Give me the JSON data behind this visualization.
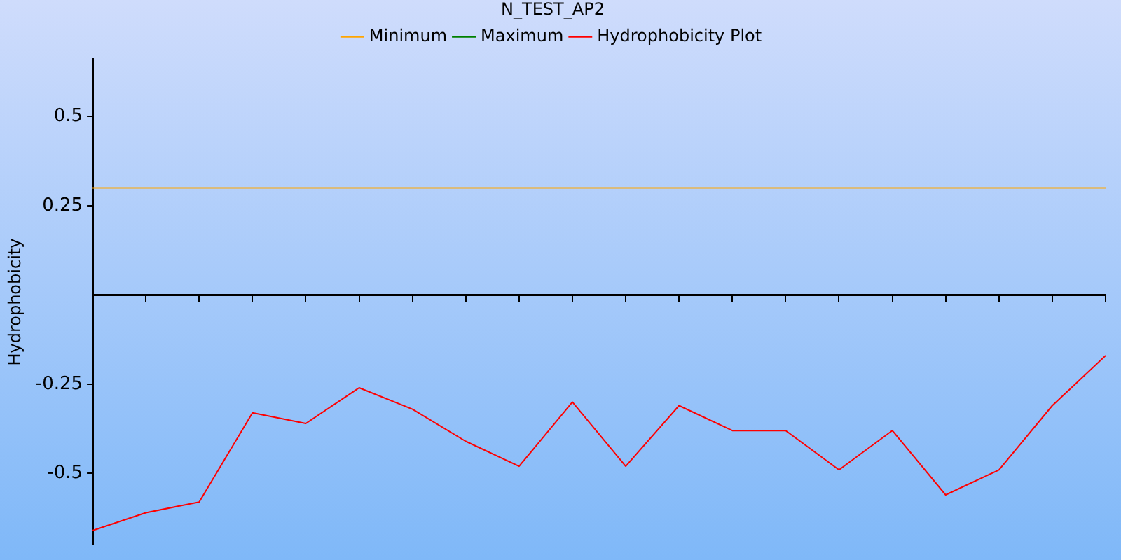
{
  "chart_data": {
    "type": "line",
    "title": "N_TEST_AP2",
    "ylabel": "Hydrophobicity",
    "categories": [
      null,
      null,
      null,
      null,
      null,
      null,
      null,
      null,
      null,
      null,
      null,
      null,
      null,
      null,
      null,
      null,
      null,
      null,
      null,
      null
    ],
    "series": [
      {
        "name": "Minimum",
        "color": "#ffa500",
        "values": [
          0.3,
          0.3,
          0.3,
          0.3,
          0.3,
          0.3,
          0.3,
          0.3,
          0.3,
          0.3,
          0.3,
          0.3,
          0.3,
          0.3,
          0.3,
          0.3,
          0.3,
          0.3,
          0.3,
          0.3
        ]
      },
      {
        "name": "Maximum",
        "color": "#008000",
        "values": [
          null,
          null,
          null,
          null,
          null,
          null,
          null,
          null,
          null,
          null,
          null,
          null,
          null,
          null,
          null,
          null,
          null,
          null,
          null,
          null
        ]
      },
      {
        "name": "Hydrophobicity Plot",
        "color": "#ff0000",
        "values": [
          -0.66,
          -0.61,
          -0.58,
          -0.33,
          -0.36,
          -0.26,
          -0.32,
          -0.41,
          -0.48,
          -0.3,
          -0.48,
          -0.31,
          -0.38,
          -0.38,
          -0.49,
          -0.38,
          -0.56,
          -0.49,
          -0.31,
          -0.17
        ]
      }
    ],
    "ylim": [
      -0.7,
      0.66
    ],
    "yticks": [
      -0.5,
      -0.25,
      0.25,
      0.5
    ],
    "grid": false,
    "legend": "top",
    "tick_labels": "y",
    "marker": "none",
    "line_style": "solid"
  }
}
